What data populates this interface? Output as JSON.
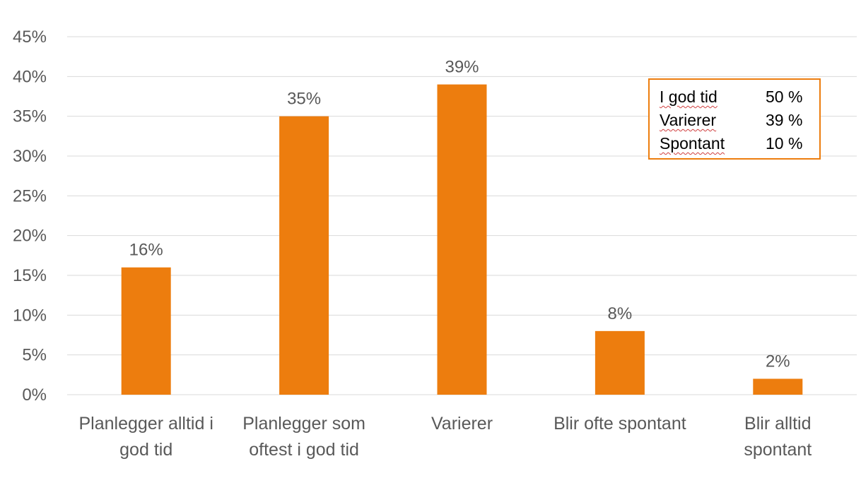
{
  "chart_data": {
    "type": "bar",
    "categories": [
      [
        "Planlegger alltid i",
        "god tid"
      ],
      [
        "Planlegger som",
        "oftest i god tid"
      ],
      [
        "Varierer"
      ],
      [
        "Blir ofte spontant"
      ],
      [
        "Blir alltid",
        "spontant"
      ]
    ],
    "values": [
      16,
      35,
      39,
      8,
      2
    ],
    "data_labels": [
      "16%",
      "35%",
      "39%",
      "8%",
      "2%"
    ],
    "y_ticks": [
      "0%",
      "5%",
      "10%",
      "15%",
      "20%",
      "25%",
      "30%",
      "35%",
      "40%",
      "45%"
    ],
    "ylim": [
      0,
      45
    ],
    "grid": true,
    "bar_color": "#ED7D0E",
    "grid_color": "#D9D9D9"
  },
  "summary_box": {
    "rows": [
      {
        "label": "I god tid",
        "value": "50 %"
      },
      {
        "label": "Varierer",
        "value": "39 %"
      },
      {
        "label": "Spontant",
        "value": "10 %"
      }
    ],
    "border_color": "#ED7D0E"
  }
}
